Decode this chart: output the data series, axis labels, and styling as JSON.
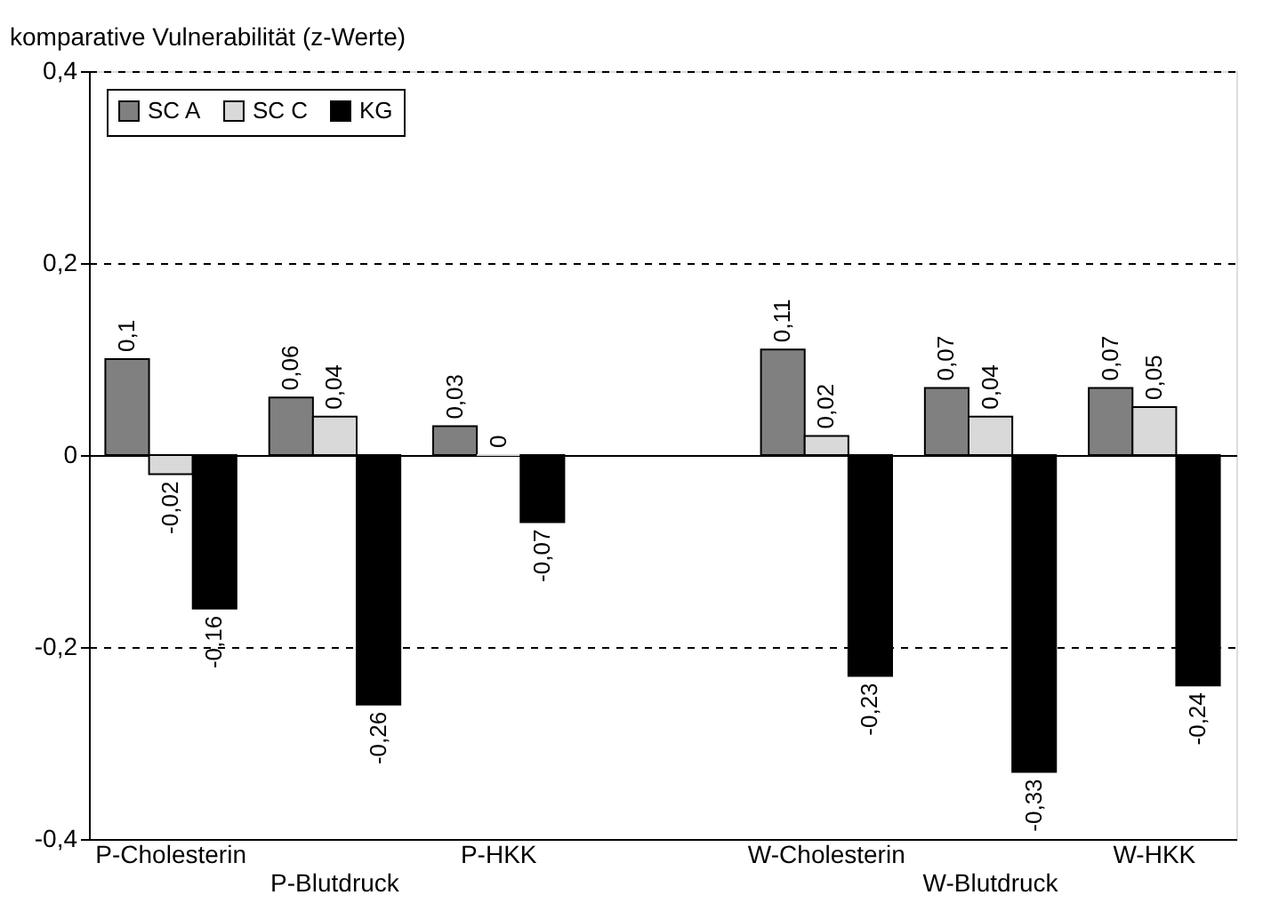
{
  "chart_data": {
    "type": "bar",
    "ylabel": "komparative Vulnerabilität (z-Werte)",
    "categories": [
      "P-Cholesterin",
      "P-Blutdruck",
      "P-HKK",
      null,
      "W-Cholesterin",
      "W-Blutdruck",
      "W-HKK"
    ],
    "series": [
      {
        "name": "SC A",
        "color": "#808080",
        "values": [
          0.1,
          0.06,
          0.03,
          null,
          0.11,
          0.07,
          0.07
        ],
        "value_labels": [
          "0,1",
          "0,06",
          "0,03",
          null,
          "0,11",
          "0,07",
          "0,07"
        ]
      },
      {
        "name": "SC C",
        "color": "#d9d9d9",
        "values": [
          -0.02,
          0.04,
          0,
          null,
          0.02,
          0.04,
          0.05
        ],
        "value_labels": [
          "-0,02",
          "0,04",
          "0",
          null,
          "0,02",
          "0,04",
          "0,05"
        ]
      },
      {
        "name": "KG",
        "color": "#000000",
        "values": [
          -0.16,
          -0.26,
          -0.07,
          null,
          -0.23,
          -0.33,
          -0.24
        ],
        "value_labels": [
          "-0,16",
          "-0,26",
          "-0,07",
          null,
          "-0,23",
          "-0,33",
          "-0,24"
        ]
      }
    ],
    "ylim": [
      -0.4,
      0.4
    ],
    "yticks": [
      {
        "value": -0.4,
        "label": "-0,4"
      },
      {
        "value": -0.2,
        "label": "-0,2"
      },
      {
        "value": 0,
        "label": "0"
      },
      {
        "value": 0.2,
        "label": "0,2"
      },
      {
        "value": 0.4,
        "label": "0,4"
      }
    ],
    "grid": "y",
    "legend": "top left"
  }
}
